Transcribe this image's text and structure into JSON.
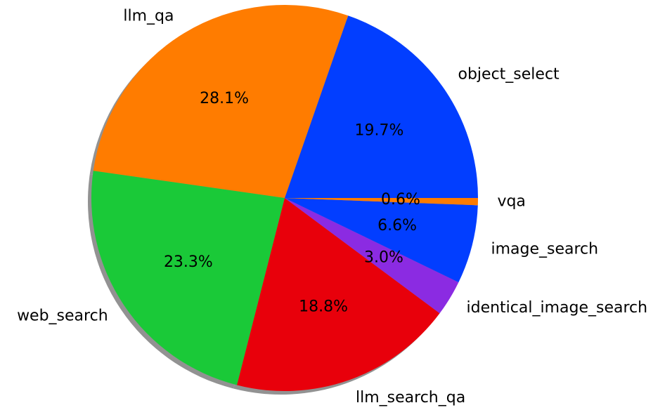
{
  "chart_data": {
    "type": "pie",
    "categories": [
      "object_select",
      "llm_qa",
      "web_search",
      "llm_search_qa",
      "identical_image_search",
      "image_search",
      "vqa"
    ],
    "values": [
      19.7,
      28.1,
      23.3,
      18.8,
      3.0,
      6.6,
      0.6
    ],
    "value_labels": [
      "19.7%",
      "28.1%",
      "23.3%",
      "18.8%",
      "3.0%",
      "6.6%",
      "0.6%"
    ],
    "colors": [
      "#023eff",
      "#ff7c00",
      "#1ac938",
      "#e8000b",
      "#8b2be2",
      "#023eff",
      "#ff7c00"
    ],
    "start_angle": 0,
    "shadow": true
  }
}
